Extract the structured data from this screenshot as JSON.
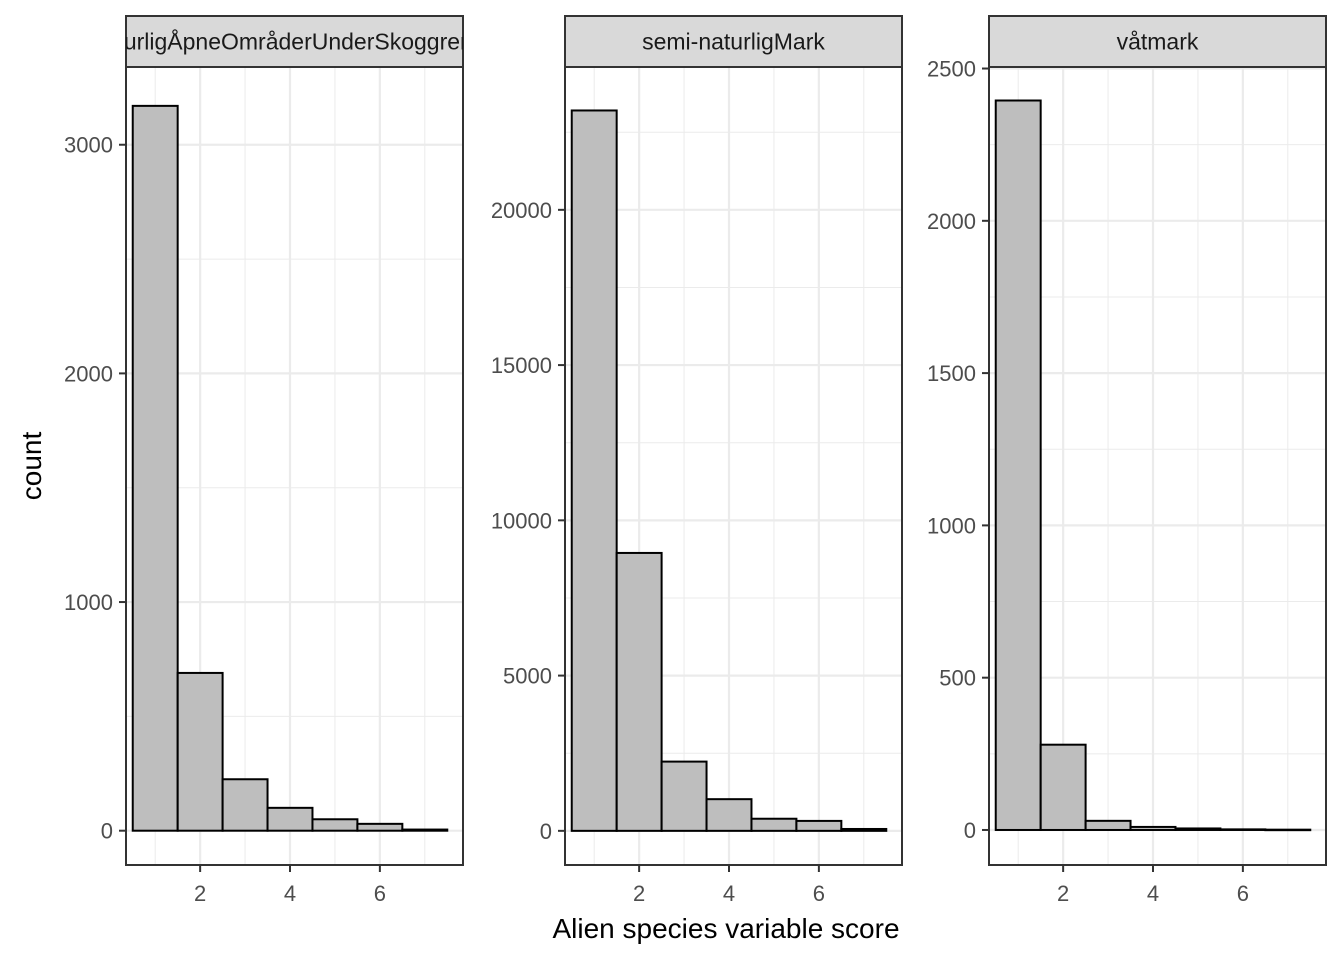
{
  "chart_data": {
    "type": "bar",
    "xlabel": "Alien species variable score",
    "ylabel": "count",
    "shared_x": {
      "bin_width": 1,
      "bin_centers": [
        1,
        2,
        3,
        4,
        5,
        6,
        7
      ],
      "xlim": [
        0.35,
        7.85
      ],
      "ticks": [
        2,
        4,
        6
      ],
      "tick_labels": [
        "2",
        "4",
        "6"
      ]
    },
    "grid": true,
    "colors": {
      "bar_fill": "#bebebe",
      "bar_stroke": "#000000",
      "strip_fill": "#d9d9d9",
      "grid": "#ebebeb",
      "panel_border": "#333333"
    },
    "panels": [
      {
        "strip_label": "naturligÅpneOmråderUnderSkoggrensa",
        "values": [
          3170,
          690,
          225,
          100,
          50,
          30,
          5
        ],
        "ylim": [
          -150,
          3340
        ],
        "yticks": [
          0,
          1000,
          2000,
          3000
        ],
        "ytick_labels": [
          "0",
          "1000",
          "2000",
          "3000"
        ]
      },
      {
        "strip_label": "semi-naturligMark",
        "values": [
          23200,
          8950,
          2230,
          1020,
          390,
          320,
          60
        ],
        "ylim": [
          -1100,
          24600
        ],
        "yticks": [
          0,
          5000,
          10000,
          15000,
          20000
        ],
        "ytick_labels": [
          "0",
          "5000",
          "10000",
          "15000",
          "20000"
        ]
      },
      {
        "strip_label": "våtmark",
        "values": [
          2395,
          280,
          30,
          10,
          5,
          2,
          1
        ],
        "ylim": [
          -115,
          2505
        ],
        "yticks": [
          0,
          500,
          1000,
          1500,
          2000,
          2500
        ],
        "ytick_labels": [
          "0",
          "500",
          "1000",
          "1500",
          "2000",
          "2500"
        ]
      }
    ]
  }
}
